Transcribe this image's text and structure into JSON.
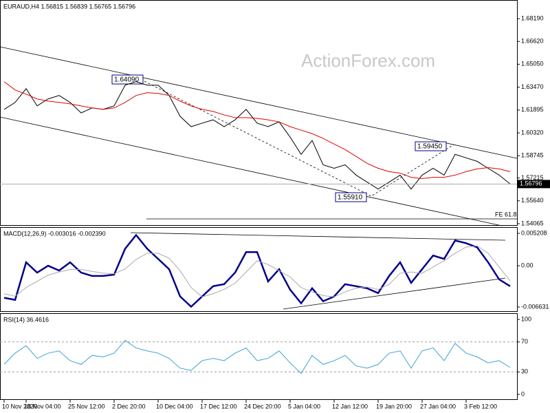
{
  "chart_data": [
    {
      "type": "line",
      "title": "EURAUD,H4  1.56815 1.56839 1.56765 1.56796",
      "categories": [
        "10 Nov 2020",
        null,
        "18 Nov 04:00",
        null,
        null,
        null,
        "25 Nov 12:00",
        null,
        null,
        null,
        "2 Dec 20:00",
        null,
        null,
        null,
        "10 Dec 04:00",
        null,
        null,
        null,
        "17 Dec 12:00",
        null,
        null,
        null,
        "24 Dec 20:00",
        null,
        null,
        null,
        "5 Jan 04:00",
        null,
        null,
        null,
        "12 Jan 12:00",
        null,
        null,
        null,
        "19 Jan 20:00",
        null,
        null,
        null,
        "27 Jan 04:00",
        null,
        null,
        null,
        "3 Feb 12:00",
        null,
        null,
        null,
        null
      ],
      "series": [
        {
          "name": "EURAUD",
          "color": "#000000",
          "values": [
            1.6194,
            1.6242,
            1.6337,
            1.6218,
            1.6266,
            1.629,
            1.6242,
            1.617,
            1.6204,
            1.6194,
            1.6218,
            1.6361,
            1.6385,
            1.6361,
            1.6361,
            1.629,
            1.6146,
            1.6075,
            1.6099,
            1.6122,
            1.6075,
            1.6122,
            1.6194,
            1.6099,
            1.6075,
            1.6108,
            1.6003,
            1.5884,
            1.598,
            1.5812,
            1.5788,
            1.5812,
            1.5741,
            1.5693,
            1.5645,
            1.5693,
            1.5741,
            1.5645,
            1.5741,
            1.5788,
            1.5741,
            1.5884,
            1.586,
            1.5836,
            1.5788,
            1.5741,
            1.568
          ]
        },
        {
          "name": "MA",
          "color": "#e00000",
          "values": [
            1.6385,
            1.6328,
            1.6299,
            1.6266,
            1.6251,
            1.6242,
            1.6232,
            1.6218,
            1.6204,
            1.6194,
            1.6204,
            1.6242,
            1.629,
            1.6309,
            1.6304,
            1.629,
            1.6251,
            1.6218,
            1.6194,
            1.618,
            1.6156,
            1.6137,
            1.6137,
            1.6132,
            1.6122,
            1.6108,
            1.6075,
            1.6051,
            1.6027,
            1.5994,
            1.5955,
            1.5917,
            1.587,
            1.5822,
            1.5788,
            1.5765,
            1.5755,
            1.5726,
            1.5717,
            1.5726,
            1.5726,
            1.5741,
            1.5765,
            1.5784,
            1.5793,
            1.5784,
            1.5765
          ]
        }
      ],
      "ylim": [
        1.5392,
        1.6943
      ],
      "yticks": [
        {
          "value": 1.6819,
          "label": "1.68190"
        },
        {
          "value": 1.6662,
          "label": "1.66620"
        },
        {
          "value": 1.6505,
          "label": "1.65050"
        },
        {
          "value": 1.6347,
          "label": "1.63470"
        },
        1.61895,
        {
          "value": 1.6032,
          "label": "1.60320"
        },
        1.58745,
        1.57215,
        {
          "value": 1.5564,
          "label": "1.55640"
        },
        1.54065
      ],
      "last": 1.56796,
      "annotations": [
        "1.64090",
        "1.59450",
        "1.55910",
        "FE 61.8"
      ],
      "watermark": "ActionForex.com"
    },
    {
      "type": "line",
      "title": "MACD(12,26,9) -0.003016 -0.002390",
      "series": [
        {
          "name": "MACD",
          "color": "#00008b",
          "values": [
            -0.00515,
            -0.00548,
            0.00055,
            -0.0011,
            0,
            -0.00077,
            0.00055,
            -0.0011,
            -0.00164,
            -0.00164,
            -0.00143,
            0.00274,
            0.00493,
            0.00274,
            0.0011,
            -0.00055,
            -0.00493,
            -0.00658,
            -0.00493,
            -0.00329,
            -0.00296,
            -0.0011,
            0.00219,
            0.00219,
            -0.00252,
            -0.00055,
            -0.00384,
            -0.00603,
            -0.00362,
            -0.0057,
            -0.00493,
            -0.00296,
            -0.00329,
            -0.00362,
            -0.00439,
            -0.00164,
            0.00055,
            -0.00274,
            -0.00055,
            0.00164,
            0.0011,
            0.00406,
            0.00362,
            0.00296,
            0.00055,
            -0.00219,
            -0.00329
          ]
        },
        {
          "name": "Signal",
          "color": "#a9a9a9",
          "values": [
            -0.0045,
            -0.0049,
            -0.0035,
            -0.0025,
            -0.0015,
            -0.001,
            -0.0006,
            -0.0006,
            -0.0009,
            -0.0012,
            -0.0013,
            -0.0005,
            0.001,
            0.002,
            0.002,
            0.0012,
            -0.0008,
            -0.0035,
            -0.005,
            -0.0045,
            -0.0038,
            -0.0028,
            -0.001,
            0.0008,
            0.0002,
            -0.0008,
            -0.0018,
            -0.0035,
            -0.0042,
            -0.0048,
            -0.005,
            -0.0042,
            -0.0036,
            -0.0034,
            -0.0038,
            -0.003,
            -0.0012,
            -0.001,
            -0.0012,
            -0.0002,
            0.0008,
            0.002,
            0.003,
            0.0032,
            0.002,
            -0.0002,
            -0.0024
          ]
        }
      ],
      "ylim": [
        -0.00729,
        0.00609
      ],
      "yticks": [
        0.005208,
        {
          "value": 0,
          "label": "0.00"
        },
        -0.006631
      ]
    },
    {
      "type": "line",
      "title": "RSI(14) 36.4616",
      "series": [
        {
          "name": "RSI",
          "color": "#3aa0d8",
          "values": [
            40,
            55,
            65,
            48,
            55,
            58,
            45,
            40,
            52,
            50,
            55,
            72,
            62,
            58,
            55,
            48,
            35,
            32,
            45,
            48,
            45,
            55,
            62,
            45,
            48,
            58,
            42,
            28,
            52,
            40,
            45,
            52,
            38,
            35,
            40,
            55,
            58,
            35,
            58,
            62,
            45,
            68,
            55,
            50,
            42,
            45,
            36
          ]
        }
      ],
      "ylim": [
        -7.4,
        107.4
      ],
      "yticks": [
        100,
        70,
        30,
        0
      ],
      "levels": [
        70,
        30
      ]
    }
  ]
}
